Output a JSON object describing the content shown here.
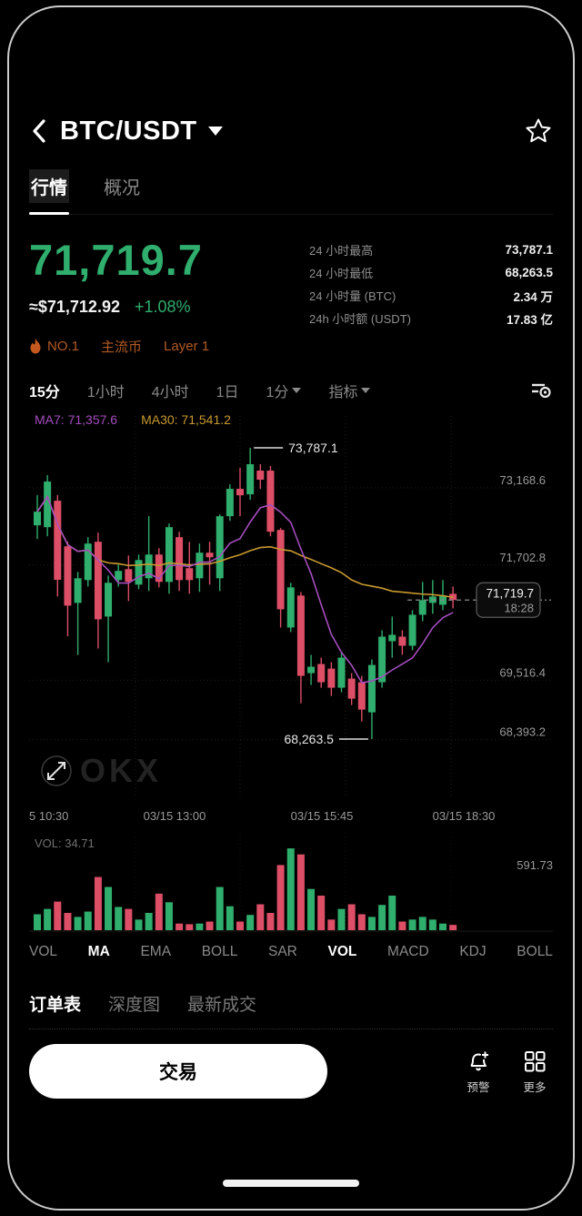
{
  "header": {
    "title": "BTC/USDT"
  },
  "page_tabs": {
    "items": [
      {
        "label": "行情",
        "active": true
      },
      {
        "label": "概况",
        "active": false
      }
    ]
  },
  "price_panel": {
    "last_price": "71,719.7",
    "fiat_approx": "≈$71,712.92",
    "change_pct": "+1.08%",
    "tags": [
      {
        "label": "NO.1"
      },
      {
        "label": "主流币"
      },
      {
        "label": "Layer 1"
      }
    ],
    "stats": [
      {
        "label": "24 小时最高",
        "value": "73,787.1"
      },
      {
        "label": "24 小时最低",
        "value": "68,263.5"
      },
      {
        "label": "24 小时量 (BTC)",
        "value": "2.34 万"
      },
      {
        "label": "24h 小时额 (USDT)",
        "value": "17.83 亿"
      }
    ]
  },
  "timeframes": {
    "items": [
      {
        "label": "15分",
        "active": true
      },
      {
        "label": "1小时",
        "active": false
      },
      {
        "label": "4小时",
        "active": false
      },
      {
        "label": "1日",
        "active": false
      },
      {
        "label": "1分",
        "active": false,
        "caret": true
      },
      {
        "label": "指标",
        "active": false,
        "caret": true
      }
    ]
  },
  "legend": {
    "ma7": "MA7: 71,357.6",
    "ma30": "MA30: 71,541.2"
  },
  "chart_data": {
    "type": "candlestick",
    "title": "BTC/USDT 15分 K线",
    "x_labels": [
      "5 10:30",
      "03/15 13:00",
      "03/15 15:45",
      "03/15 18:30"
    ],
    "price_range": {
      "high": 73787.1,
      "low": 68263.5
    },
    "axis_labels": [
      {
        "price": 73168.6,
        "label": "73,168.6"
      },
      {
        "price": 71702.8,
        "label": "71,702.8"
      },
      {
        "price": 69516.4,
        "label": "69,516.4"
      },
      {
        "price": 68393.2,
        "label": "68,393.2"
      }
    ],
    "markers": {
      "high": {
        "label": "73,787.1"
      },
      "low": {
        "label": "68,263.5"
      }
    },
    "price_tag": {
      "price_label": "71,719.7",
      "time_label": "18:28"
    },
    "ma_periods": {
      "ma7": 7,
      "ma30": 30
    },
    "candles": [
      [
        72317,
        72889,
        72057,
        72576
      ],
      [
        72282,
        73268,
        72109,
        73147
      ],
      [
        72784,
        72889,
        70967,
        71284
      ],
      [
        71919,
        72005,
        70214,
        70794
      ],
      [
        70846,
        71434,
        69860,
        71313
      ],
      [
        71279,
        72092,
        71157,
        71971
      ],
      [
        72005,
        72178,
        69981,
        70535
      ],
      [
        70587,
        71365,
        69721,
        71227
      ],
      [
        71279,
        71573,
        71157,
        71452
      ],
      [
        71486,
        71746,
        70881,
        71244
      ],
      [
        71192,
        71763,
        71106,
        71659
      ],
      [
        71313,
        72490,
        71071,
        71763
      ],
      [
        71763,
        71884,
        71140,
        71244
      ],
      [
        71244,
        72351,
        71019,
        72282
      ],
      [
        72092,
        72196,
        71071,
        71279
      ],
      [
        71504,
        72005,
        71019,
        71279
      ],
      [
        71313,
        71971,
        71054,
        71798
      ],
      [
        71798,
        72005,
        71192,
        71711
      ],
      [
        71313,
        72524,
        71071,
        72490
      ],
      [
        72490,
        73095,
        72403,
        73009
      ],
      [
        73009,
        73406,
        72490,
        72887
      ],
      [
        72905,
        73787.1,
        72801,
        73476
      ],
      [
        73355,
        73476,
        73009,
        73182
      ],
      [
        73355,
        73441,
        72109,
        72196
      ],
      [
        72230,
        72265,
        70379,
        70725
      ],
      [
        70379,
        71227,
        70292,
        71140
      ],
      [
        70985,
        71054,
        68943,
        69462
      ],
      [
        69514,
        69860,
        69289,
        69635
      ],
      [
        69687,
        69808,
        69237,
        69341
      ],
      [
        69600,
        69721,
        69082,
        69237
      ],
      [
        69237,
        69894,
        69151,
        69808
      ],
      [
        69410,
        69514,
        68909,
        69030
      ],
      [
        69341,
        69462,
        68598,
        68822
      ],
      [
        68771,
        69773,
        68263.5,
        69669
      ],
      [
        69341,
        70327,
        69237,
        70206
      ],
      [
        70119,
        70587,
        69808,
        70241
      ],
      [
        70206,
        70327,
        69860,
        70033
      ],
      [
        70033,
        70708,
        69946,
        70621
      ],
      [
        70621,
        71244,
        70500,
        70898
      ],
      [
        70846,
        71279,
        70639,
        70967
      ],
      [
        70811,
        71279,
        70708,
        70985
      ],
      [
        71019,
        71157,
        70742,
        70900
      ]
    ],
    "volumes": [
      120,
      160,
      215,
      130,
      100,
      140,
      400,
      325,
      175,
      160,
      80,
      130,
      275,
      210,
      50,
      45,
      50,
      65,
      325,
      180,
      65,
      115,
      195,
      130,
      490,
      615,
      570,
      310,
      260,
      80,
      160,
      195,
      120,
      100,
      190,
      260,
      65,
      80,
      100,
      80,
      50,
      40
    ],
    "volume_scale_max": 650,
    "volume_label": "VOL: 34.71",
    "volume_axis_label": "591.73",
    "colors": {
      "up": "#2fae6d",
      "down": "#dd4e67",
      "ma7": "#a64dbf",
      "ma30": "#c8992e",
      "grid": "#1f1f1f"
    }
  },
  "indicator_tabs": {
    "items": [
      {
        "label": "VOL",
        "active": false
      },
      {
        "label": "MA",
        "active": true
      },
      {
        "label": "EMA",
        "active": false
      },
      {
        "label": "BOLL",
        "active": false
      },
      {
        "label": "SAR",
        "active": false
      },
      {
        "label": "VOL",
        "active": true
      },
      {
        "label": "MACD",
        "active": false
      },
      {
        "label": "KDJ",
        "active": false
      },
      {
        "label": "BOLL",
        "active": false
      }
    ]
  },
  "order_tabs": {
    "items": [
      {
        "label": "订单表",
        "active": true
      },
      {
        "label": "深度图",
        "active": false
      },
      {
        "label": "最新成交",
        "active": false
      }
    ]
  },
  "bottom_bar": {
    "trade_button": "交易",
    "actions": [
      {
        "label": "预警"
      },
      {
        "label": "更多"
      }
    ]
  },
  "watermark": {
    "text": "OKX"
  }
}
